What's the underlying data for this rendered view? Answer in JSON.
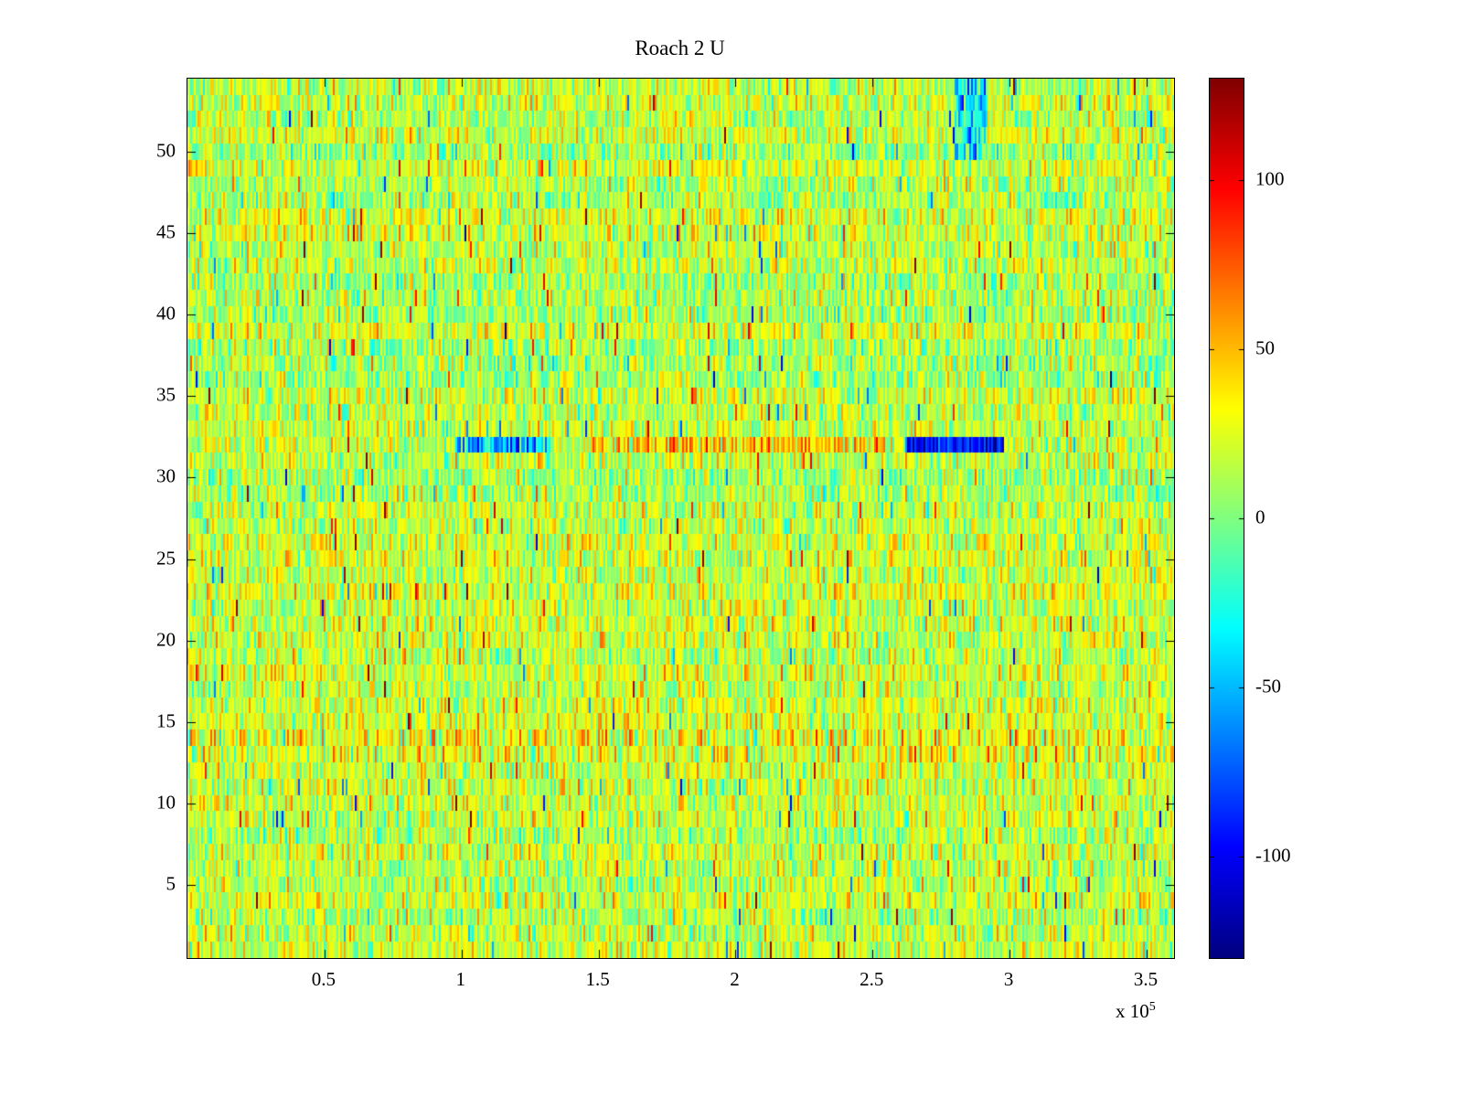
{
  "chart_data": {
    "type": "heatmap",
    "title": "Roach 2 U",
    "xlabel": "",
    "ylabel": "",
    "x_unit_scale": {
      "prefix": "x 10",
      "exponent": "5"
    },
    "x_tick_labels": [
      "0.5",
      "1",
      "1.5",
      "2",
      "2.5",
      "3",
      "3.5"
    ],
    "x_tick_values": [
      0.5,
      1,
      1.5,
      2,
      2.5,
      3,
      3.5
    ],
    "xlim": [
      0,
      3.6
    ],
    "y_tick_labels": [
      "5",
      "10",
      "15",
      "20",
      "25",
      "30",
      "35",
      "40",
      "45",
      "50"
    ],
    "y_tick_values": [
      5,
      10,
      15,
      20,
      25,
      30,
      35,
      40,
      45,
      50
    ],
    "ylim": [
      0.5,
      54.5
    ],
    "grid": false,
    "legend": "none",
    "colormap": "jet",
    "clim": [
      -130,
      130
    ],
    "colorbar": {
      "position": "right",
      "tick_labels": [
        "100",
        "50",
        "0",
        "-50",
        "-100"
      ],
      "tick_values": [
        100,
        50,
        0,
        -50,
        -100
      ]
    },
    "matrix": {
      "rows": 54,
      "cols": 540
    },
    "noise": {
      "seed": 20240517,
      "row_base": 15,
      "row_variation": 16,
      "std": 20,
      "spike_prob": 0.02,
      "spike_pos_frac": 0.55,
      "spike_min": 35,
      "spike_span": 75
    },
    "anomalies": [
      {
        "x0": 0.98,
        "x1": 1.32,
        "y0": 31.5,
        "y1": 32.5,
        "mean": -55,
        "std": 30,
        "note": "cyan-blue streak in row 32"
      },
      {
        "x0": 1.45,
        "x1": 2.55,
        "y0": 31.5,
        "y1": 32.5,
        "mean": 40,
        "std": 25,
        "note": "warm yellow-orange stretch in row 32"
      },
      {
        "x0": 2.62,
        "x1": 2.98,
        "y0": 31.5,
        "y1": 32.5,
        "mean": -100,
        "std": 22,
        "note": "dark blue patch in row 32"
      },
      {
        "x0": 2.8,
        "x1": 2.92,
        "y0": 49.5,
        "y1": 54.5,
        "mean": -40,
        "std": 28,
        "note": "blue smudge near top edge"
      },
      {
        "x0": 0.0,
        "x1": 3.6,
        "y0": 12.5,
        "y1": 14.5,
        "mean": 26,
        "std": 26,
        "note": "slightly warm band around rows 13-14"
      }
    ]
  }
}
